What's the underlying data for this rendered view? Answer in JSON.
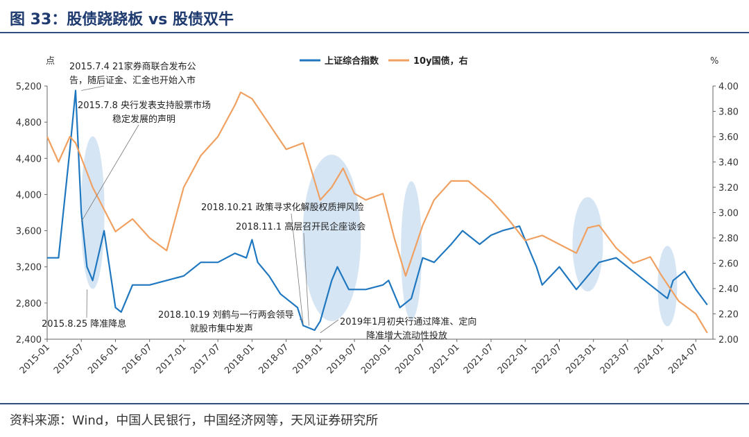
{
  "title": "图 33：股债跷跷板 vs 股债双牛",
  "source": "资料来源：Wind，中国人民银行，中国经济网等，天风证券研究所",
  "chart_data": {
    "type": "line",
    "left_unit": "点",
    "right_unit": "%",
    "y_left": {
      "min": 2400,
      "max": 5200,
      "ticks": [
        "5,200",
        "4,800",
        "4,400",
        "4,000",
        "3,600",
        "3,200",
        "2,800",
        "2,400"
      ],
      "values": [
        5200,
        4800,
        4400,
        4000,
        3600,
        3200,
        2800,
        2400
      ]
    },
    "y_right": {
      "min": 2.0,
      "max": 4.0,
      "ticks": [
        "4.00",
        "3.80",
        "3.60",
        "3.40",
        "3.20",
        "3.00",
        "2.80",
        "2.60",
        "2.40",
        "2.20",
        "2.00"
      ],
      "values": [
        4.0,
        3.8,
        3.6,
        3.4,
        3.2,
        3.0,
        2.8,
        2.6,
        2.4,
        2.2,
        2.0
      ]
    },
    "x_ticks": [
      "2015-01",
      "2015-07",
      "2016-01",
      "2016-07",
      "2017-01",
      "2017-07",
      "2018-01",
      "2018-07",
      "2019-01",
      "2019-07",
      "2020-01",
      "2020-07",
      "2021-01",
      "2021-07",
      "2022-01",
      "2022-07",
      "2023-01",
      "2023-07",
      "2024-01",
      "2024-07"
    ],
    "x_range": [
      "2015-01",
      "2024-09"
    ],
    "series": [
      {
        "name": "上证综合指数",
        "axis": "left",
        "color": "#1f77c0",
        "x": [
          "2015-01",
          "2015-03",
          "2015-05",
          "2015-06",
          "2015-07",
          "2015-08",
          "2015-09",
          "2015-11",
          "2016-01",
          "2016-02",
          "2016-04",
          "2016-07",
          "2016-10",
          "2017-01",
          "2017-04",
          "2017-07",
          "2017-10",
          "2017-12",
          "2018-01",
          "2018-02",
          "2018-04",
          "2018-06",
          "2018-07",
          "2018-09",
          "2018-10",
          "2018-12",
          "2019-01",
          "2019-03",
          "2019-04",
          "2019-06",
          "2019-09",
          "2019-12",
          "2020-01",
          "2020-03",
          "2020-05",
          "2020-07",
          "2020-09",
          "2020-12",
          "2021-02",
          "2021-05",
          "2021-07",
          "2021-09",
          "2021-12",
          "2022-01",
          "2022-03",
          "2022-04",
          "2022-07",
          "2022-10",
          "2022-12",
          "2023-02",
          "2023-05",
          "2023-08",
          "2023-10",
          "2023-12",
          "2024-02",
          "2024-03",
          "2024-05",
          "2024-07",
          "2024-09"
        ],
        "values": [
          3300,
          3300,
          4500,
          5150,
          3800,
          3200,
          3050,
          3600,
          2750,
          2700,
          3000,
          3000,
          3050,
          3100,
          3250,
          3250,
          3350,
          3300,
          3500,
          3250,
          3100,
          2900,
          2850,
          2750,
          2550,
          2500,
          2600,
          3050,
          3200,
          2950,
          2950,
          3000,
          3050,
          2750,
          2850,
          3300,
          3250,
          3450,
          3600,
          3450,
          3550,
          3600,
          3650,
          3500,
          3200,
          3000,
          3200,
          2950,
          3100,
          3250,
          3300,
          3150,
          3050,
          2950,
          2850,
          3050,
          3150,
          2950,
          2780
        ]
      },
      {
        "name": "10y国债，右",
        "axis": "right",
        "color": "#f0a060",
        "x": [
          "2015-01",
          "2015-03",
          "2015-05",
          "2015-06",
          "2015-09",
          "2016-01",
          "2016-04",
          "2016-07",
          "2016-10",
          "2017-01",
          "2017-04",
          "2017-07",
          "2017-10",
          "2017-11",
          "2018-01",
          "2018-04",
          "2018-07",
          "2018-10",
          "2019-01",
          "2019-03",
          "2019-05",
          "2019-07",
          "2019-09",
          "2019-12",
          "2020-02",
          "2020-04",
          "2020-07",
          "2020-09",
          "2020-12",
          "2021-03",
          "2021-07",
          "2021-10",
          "2022-01",
          "2022-04",
          "2022-07",
          "2022-10",
          "2022-12",
          "2023-02",
          "2023-05",
          "2023-08",
          "2023-11",
          "2024-01",
          "2024-04",
          "2024-07",
          "2024-09"
        ],
        "values": [
          3.6,
          3.4,
          3.6,
          3.55,
          3.2,
          2.85,
          2.95,
          2.8,
          2.7,
          3.2,
          3.45,
          3.6,
          3.85,
          3.95,
          3.9,
          3.7,
          3.5,
          3.55,
          3.1,
          3.2,
          3.35,
          3.15,
          3.1,
          3.15,
          2.8,
          2.5,
          2.9,
          3.1,
          3.25,
          3.25,
          3.1,
          2.95,
          2.78,
          2.82,
          2.75,
          2.68,
          2.88,
          2.9,
          2.72,
          2.6,
          2.65,
          2.5,
          2.3,
          2.2,
          2.05
        ]
      }
    ],
    "highlights": [
      {
        "x": "2015-09",
        "y": 3.0
      },
      {
        "x": "2019-03",
        "y": 2.8
      },
      {
        "x": "2020-05",
        "y": 2.7
      },
      {
        "x": "2022-12",
        "y": 2.75
      },
      {
        "x": "2024-02",
        "y": 2.42
      }
    ],
    "annotations": [
      {
        "text": "2015.7.4 21家券商联合发布公",
        "x": "2015-07",
        "y": 5150
      },
      {
        "text": "告，随后证金、汇金也开始入市"
      },
      {
        "text": "2015.7.8 央行发表支持股票市场",
        "x": "2015-07",
        "y": 3700
      },
      {
        "text": "稳定发展的声明"
      },
      {
        "text": "2015.8.25 降准降息",
        "x": "2015-08",
        "y": 2950
      },
      {
        "text": "2018.10.21 政策寻求化解股权质押风险",
        "x": "2018-10",
        "y": 2560
      },
      {
        "text": "2018.11.1 高层召开民企座谈会",
        "x": "2018-11",
        "y": 2550
      },
      {
        "text": "2018.10.19 刘鹤与一行两会领导",
        "x": "2018-10",
        "y": 2600
      },
      {
        "text": "就股市集中发声"
      },
      {
        "text": "2019年1月初央行通过降准、定向",
        "x": "2019-01",
        "y": 2470
      },
      {
        "text": "降准增大流动性投放"
      }
    ]
  }
}
